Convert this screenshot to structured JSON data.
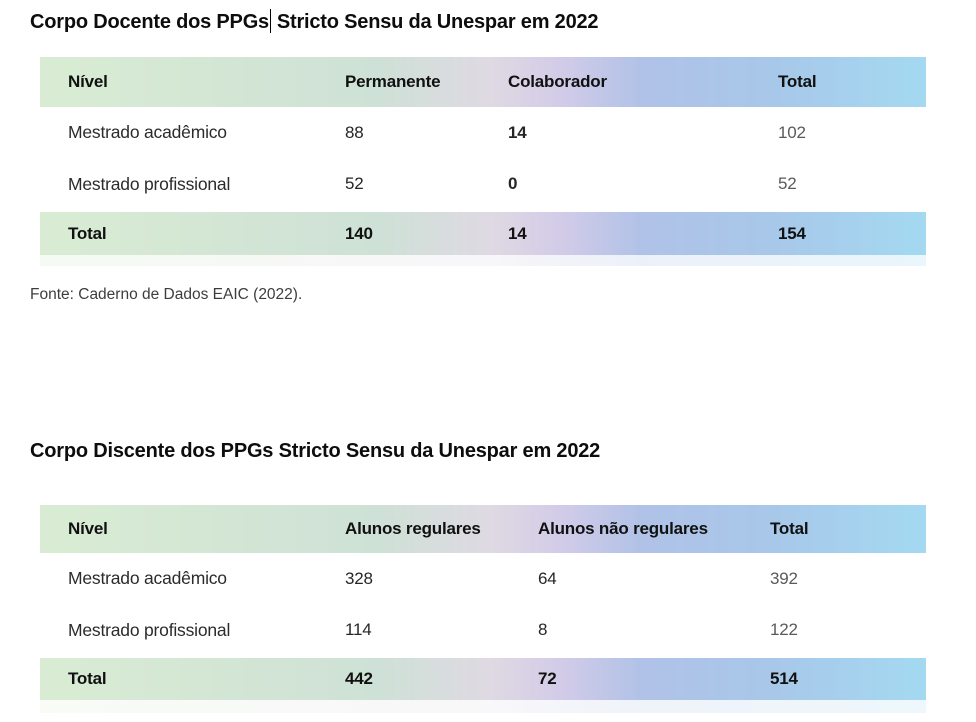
{
  "colors": {
    "gradient_green": "#d9ecd3",
    "gradient_pink_lavender": "#d2cbe8",
    "gradient_periwinkle": "#b0c2e7",
    "gradient_sky_blue": "#a4d9f1",
    "body_text": "#262626",
    "muted_value": "#5a5a5a"
  },
  "section1": {
    "title_before_cursor": "Corpo Docente dos PPGs",
    "title_after_cursor": " Stricto Sensu da Unespar em 2022",
    "table": {
      "columns": [
        "Nível",
        "Permanente",
        "Colaborador",
        "Total"
      ],
      "rows": [
        {
          "label": "Mestrado acadêmico",
          "values": [
            "88",
            "14",
            "102"
          ]
        },
        {
          "label": "Mestrado profissional",
          "values": [
            "52",
            "0",
            "52"
          ]
        }
      ],
      "total": {
        "label": "Total",
        "values": [
          "140",
          "14",
          "154"
        ]
      }
    },
    "source": "Fonte: Caderno de Dados EAIC (2022)."
  },
  "section2": {
    "title": "Corpo Discente dos PPGs Stricto Sensu da Unespar em 2022",
    "table": {
      "columns": [
        "Nível",
        "Alunos regulares",
        "Alunos não regulares",
        "Total"
      ],
      "rows": [
        {
          "label": "Mestrado acadêmico",
          "values": [
            "328",
            "64",
            "392"
          ]
        },
        {
          "label": "Mestrado profissional",
          "values": [
            "114",
            "8",
            "122"
          ]
        }
      ],
      "total": {
        "label": "Total",
        "values": [
          "442",
          "72",
          "514"
        ]
      }
    }
  }
}
